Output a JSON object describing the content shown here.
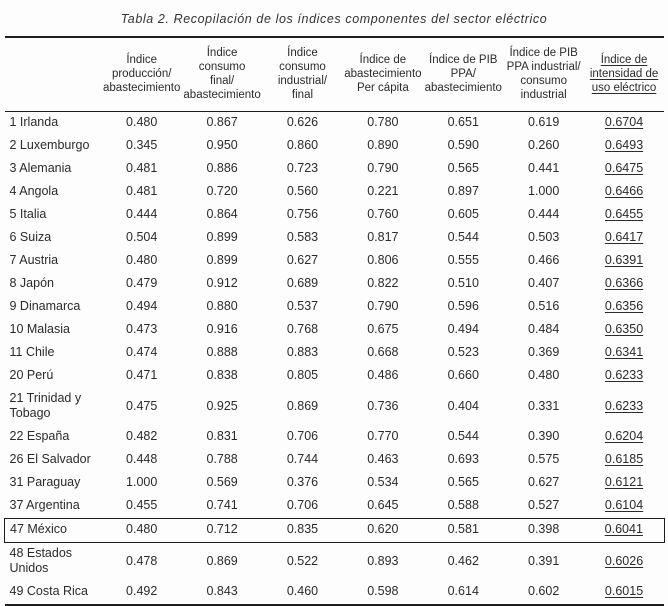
{
  "colors": {
    "text": "#2b2b2b",
    "line": "#1d1d1d",
    "background": "#fdfdfd"
  },
  "title": "Tabla 2. Recopilación de los índices componentes del sector eléctrico",
  "table": {
    "headers": [
      {
        "id": "country",
        "lines": [],
        "underline": false
      },
      {
        "id": "indice-produccion-abastecimiento",
        "lines": [
          "Índice",
          "producción/",
          "abastecimiento"
        ],
        "underline": false
      },
      {
        "id": "indice-consumo-final-abastecimiento",
        "lines": [
          "Índice consumo",
          "final/",
          "abastecimiento"
        ],
        "underline": false
      },
      {
        "id": "indice-consumo-industrial-final",
        "lines": [
          "Índice consumo",
          "industrial/",
          "final"
        ],
        "underline": false
      },
      {
        "id": "indice-abastecimiento-per-capita",
        "lines": [
          "Índice de",
          "abastecimiento",
          "Per cápita"
        ],
        "underline": false
      },
      {
        "id": "indice-pib-ppa-abastecimiento",
        "lines": [
          "Índice de PIB",
          "PPA/",
          "abastecimiento"
        ],
        "underline": false
      },
      {
        "id": "indice-pib-ppa-industrial-consumo-industrial",
        "lines": [
          "Índice de PIB",
          "PPA industrial/",
          "consumo",
          "industrial"
        ],
        "underline": false
      },
      {
        "id": "indice-intensidad-uso-electrico",
        "lines": [
          "Índice de",
          "intensidad de",
          "uso eléctrico"
        ],
        "underline": true
      }
    ],
    "highlighted_row_label": "47 México",
    "rows": [
      {
        "label": "1 Irlanda",
        "values": [
          "0.480",
          "0.867",
          "0.626",
          "0.780",
          "0.651",
          "0.619",
          "0.6704"
        ]
      },
      {
        "label": "2 Luxemburgo",
        "values": [
          "0.345",
          "0.950",
          "0.860",
          "0.890",
          "0.590",
          "0.260",
          "0.6493"
        ]
      },
      {
        "label": "3 Alemania",
        "values": [
          "0.481",
          "0.886",
          "0.723",
          "0.790",
          "0.565",
          "0.441",
          "0.6475"
        ]
      },
      {
        "label": "4 Angola",
        "values": [
          "0.481",
          "0.720",
          "0.560",
          "0.221",
          "0.897",
          "1.000",
          "0.6466"
        ]
      },
      {
        "label": "5 Italia",
        "values": [
          "0.444",
          "0.864",
          "0.756",
          "0.760",
          "0.605",
          "0.444",
          "0.6455"
        ]
      },
      {
        "label": "6 Suiza",
        "values": [
          "0.504",
          "0.899",
          "0.583",
          "0.817",
          "0.544",
          "0.503",
          "0.6417"
        ]
      },
      {
        "label": "7 Austria",
        "values": [
          "0.480",
          "0.899",
          "0.627",
          "0.806",
          "0.555",
          "0.466",
          "0.6391"
        ]
      },
      {
        "label": "8 Japón",
        "values": [
          "0.479",
          "0.912",
          "0.689",
          "0.822",
          "0.510",
          "0.407",
          "0.6366"
        ]
      },
      {
        "label": "9 Dinamarca",
        "values": [
          "0.494",
          "0.880",
          "0.537",
          "0.790",
          "0.596",
          "0.516",
          "0.6356"
        ]
      },
      {
        "label": "10 Malasia",
        "values": [
          "0.473",
          "0.916",
          "0.768",
          "0.675",
          "0.494",
          "0.484",
          "0.6350"
        ]
      },
      {
        "label": "11 Chile",
        "values": [
          "0.474",
          "0.888",
          "0.883",
          "0.668",
          "0.523",
          "0.369",
          "0.6341"
        ]
      },
      {
        "label": "20 Perú",
        "values": [
          "0.471",
          "0.838",
          "0.805",
          "0.486",
          "0.660",
          "0.480",
          "0.6233"
        ]
      },
      {
        "label": "21 Trinidad y Tobago",
        "values": [
          "0.475",
          "0.925",
          "0.869",
          "0.736",
          "0.404",
          "0.331",
          "0.6233"
        ]
      },
      {
        "label": "22 España",
        "values": [
          "0.482",
          "0.831",
          "0.706",
          "0.770",
          "0.544",
          "0.390",
          "0.6204"
        ]
      },
      {
        "label": "26 El Salvador",
        "values": [
          "0.448",
          "0.788",
          "0.744",
          "0.463",
          "0.693",
          "0.575",
          "0.6185"
        ]
      },
      {
        "label": "31 Paraguay",
        "values": [
          "1.000",
          "0.569",
          "0.376",
          "0.534",
          "0.565",
          "0.627",
          "0.6121"
        ]
      },
      {
        "label": "37 Argentina",
        "values": [
          "0.455",
          "0.741",
          "0.706",
          "0.645",
          "0.588",
          "0.527",
          "0.6104"
        ]
      },
      {
        "label": "47 México",
        "values": [
          "0.480",
          "0.712",
          "0.835",
          "0.620",
          "0.581",
          "0.398",
          "0.6041"
        ]
      },
      {
        "label": "48 Estados Unidos",
        "values": [
          "0.478",
          "0.869",
          "0.522",
          "0.893",
          "0.462",
          "0.391",
          "0.6026"
        ]
      },
      {
        "label": "49 Costa Rica",
        "values": [
          "0.492",
          "0.843",
          "0.460",
          "0.598",
          "0.614",
          "0.602",
          "0.6015"
        ]
      }
    ]
  }
}
